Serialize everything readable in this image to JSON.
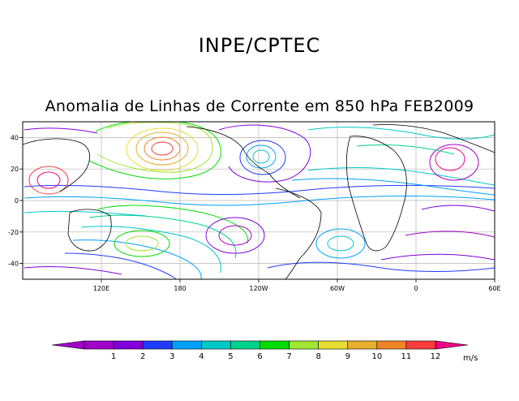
{
  "header": {
    "institution": "INPE/CPTEC",
    "title": "Anomalia de Linhas de Corrente em 850 hPa FEB2009"
  },
  "map": {
    "type": "streamline-anomaly",
    "projection": "cylindrical",
    "lon_range": [
      60,
      420
    ],
    "lat_range": [
      -50,
      50
    ],
    "lon_ticks": [
      {
        "lon": 120,
        "label": "120E"
      },
      {
        "lon": 180,
        "label": "180"
      },
      {
        "lon": 240,
        "label": "120W"
      },
      {
        "lon": 300,
        "label": "60W"
      },
      {
        "lon": 360,
        "label": "0"
      },
      {
        "lon": 420,
        "label": "60E"
      }
    ],
    "lat_ticks": [
      {
        "lat": 40,
        "label": "40"
      },
      {
        "lat": 20,
        "label": "20"
      },
      {
        "lat": 0,
        "label": "0"
      },
      {
        "lat": -20,
        "label": "-20"
      },
      {
        "lat": -40,
        "label": "-40"
      }
    ],
    "grid": true
  },
  "colorbar": {
    "unit": "m/s",
    "bins": [
      {
        "label": "1",
        "color": "#a000c8"
      },
      {
        "label": "2",
        "color": "#8200dc"
      },
      {
        "label": "3",
        "color": "#1e3cff"
      },
      {
        "label": "4",
        "color": "#00a0ff"
      },
      {
        "label": "5",
        "color": "#00c8c8"
      },
      {
        "label": "6",
        "color": "#00d28c"
      },
      {
        "label": "7",
        "color": "#00dc00"
      },
      {
        "label": "8",
        "color": "#a0e632"
      },
      {
        "label": "9",
        "color": "#e6dc32"
      },
      {
        "label": "10",
        "color": "#e6af2d"
      },
      {
        "label": "11",
        "color": "#f08228"
      },
      {
        "label": "12",
        "color": "#fa3c3c"
      }
    ],
    "low_color": "#a000c8",
    "high_color": "#f00082"
  }
}
